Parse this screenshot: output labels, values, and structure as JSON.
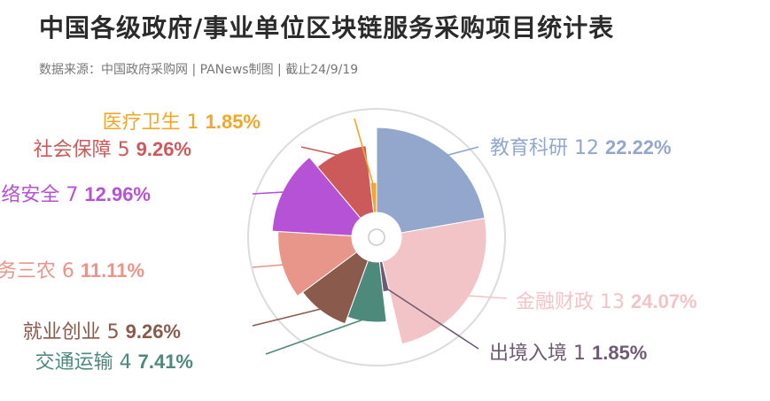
{
  "header": {
    "title": "中国各级政府/事业单位区块链服务采购项目统计表",
    "subtitle": "数据来源：中国政府采购网 | PANews制图 | 截止24/9/19"
  },
  "chart_data": {
    "type": "pie",
    "subtype": "rose",
    "value_unit": "items",
    "slices": [
      {
        "name": "教育科研",
        "value": 12,
        "percent": "22.22%",
        "color": "#93a7cc"
      },
      {
        "name": "金融财政",
        "value": 13,
        "percent": "24.07%",
        "color": "#f2c4c7"
      },
      {
        "name": "出境入境",
        "value": 1,
        "percent": "1.85%",
        "color": "#6e5b73"
      },
      {
        "name": "交通运输",
        "value": 4,
        "percent": "7.41%",
        "color": "#4e8a7b"
      },
      {
        "name": "就业创业",
        "value": 5,
        "percent": "9.26%",
        "color": "#8a5a4c"
      },
      {
        "name": "服务三农",
        "value": 6,
        "percent": "11.11%",
        "color": "#e8958a"
      },
      {
        "name": "网络安全",
        "value": 7,
        "percent": "12.96%",
        "color": "#b552d6"
      },
      {
        "name": "社会保障",
        "value": 5,
        "percent": "9.26%",
        "color": "#cc5a5a"
      },
      {
        "name": "医疗卫生",
        "value": 1,
        "percent": "1.85%",
        "color": "#f2a62a"
      }
    ]
  },
  "watermark": "PANews"
}
